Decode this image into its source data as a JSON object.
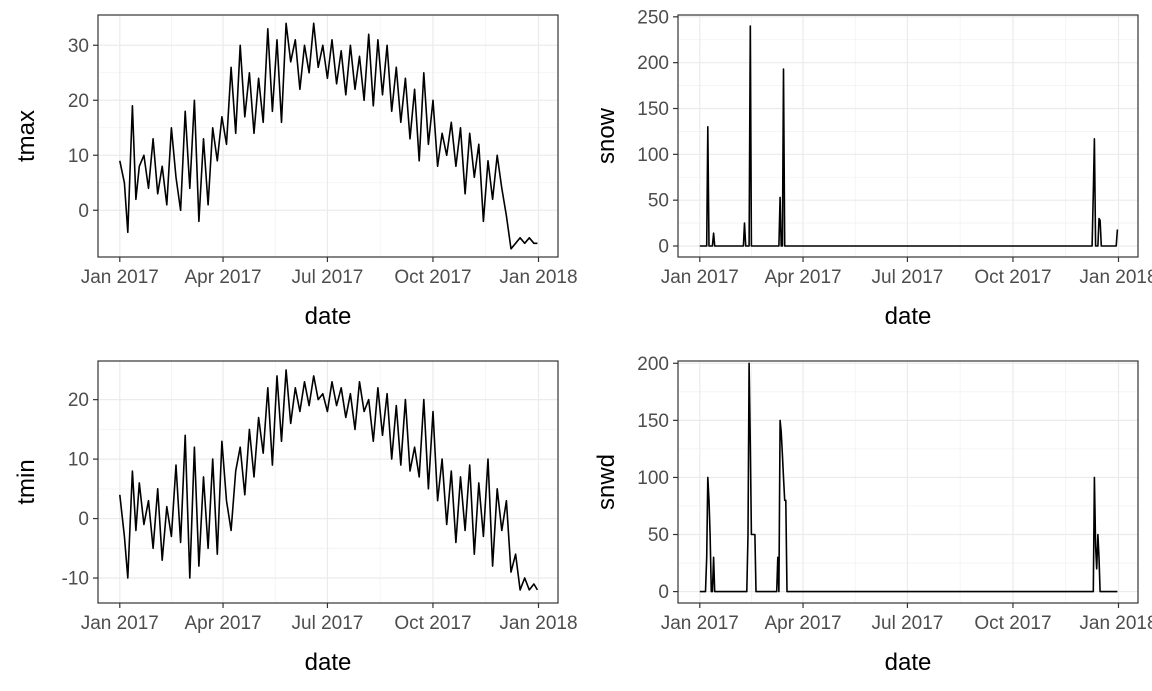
{
  "chart_data": [
    {
      "type": "line",
      "ylabel": "tmax",
      "xlabel": "date",
      "x_ticks": [
        "Jan 2017",
        "Apr 2017",
        "Jul 2017",
        "Oct 2017",
        "Jan 2018"
      ],
      "y_ticks": [
        0,
        10,
        20,
        30
      ],
      "ylim": [
        -8.5,
        35.5
      ],
      "xlim": [
        "2016-12-13",
        "2018-01-18"
      ],
      "grid": true,
      "series": [
        {
          "color": "#000000",
          "x": [
            "2017-01-01",
            "2017-01-05",
            "2017-01-08",
            "2017-01-12",
            "2017-01-15",
            "2017-01-18",
            "2017-01-22",
            "2017-01-26",
            "2017-01-30",
            "2017-02-03",
            "2017-02-07",
            "2017-02-11",
            "2017-02-15",
            "2017-02-19",
            "2017-02-23",
            "2017-02-27",
            "2017-03-03",
            "2017-03-07",
            "2017-03-11",
            "2017-03-15",
            "2017-03-19",
            "2017-03-23",
            "2017-03-27",
            "2017-03-31",
            "2017-04-04",
            "2017-04-08",
            "2017-04-12",
            "2017-04-16",
            "2017-04-20",
            "2017-04-24",
            "2017-04-28",
            "2017-05-02",
            "2017-05-06",
            "2017-05-10",
            "2017-05-14",
            "2017-05-18",
            "2017-05-22",
            "2017-05-26",
            "2017-05-30",
            "2017-06-03",
            "2017-06-07",
            "2017-06-11",
            "2017-06-15",
            "2017-06-19",
            "2017-06-23",
            "2017-06-27",
            "2017-07-01",
            "2017-07-05",
            "2017-07-09",
            "2017-07-13",
            "2017-07-17",
            "2017-07-21",
            "2017-07-25",
            "2017-07-29",
            "2017-08-02",
            "2017-08-06",
            "2017-08-10",
            "2017-08-14",
            "2017-08-18",
            "2017-08-22",
            "2017-08-26",
            "2017-08-30",
            "2017-09-03",
            "2017-09-07",
            "2017-09-11",
            "2017-09-15",
            "2017-09-19",
            "2017-09-23",
            "2017-09-27",
            "2017-10-01",
            "2017-10-05",
            "2017-10-09",
            "2017-10-13",
            "2017-10-17",
            "2017-10-21",
            "2017-10-25",
            "2017-10-29",
            "2017-11-02",
            "2017-11-06",
            "2017-11-10",
            "2017-11-14",
            "2017-11-18",
            "2017-11-22",
            "2017-11-26",
            "2017-11-30",
            "2017-12-04",
            "2017-12-08",
            "2017-12-12",
            "2017-12-16",
            "2017-12-20",
            "2017-12-24",
            "2017-12-28",
            "2017-12-31"
          ],
          "y": [
            9,
            5,
            -4,
            19,
            2,
            8,
            10,
            4,
            13,
            3,
            8,
            1,
            15,
            6,
            0,
            18,
            4,
            20,
            -2,
            13,
            1,
            15,
            9,
            17,
            12,
            26,
            14,
            30,
            17,
            25,
            14,
            24,
            16,
            33,
            18,
            31,
            16,
            34,
            27,
            31,
            22,
            30,
            25,
            34,
            26,
            30,
            24,
            31,
            23,
            29,
            21,
            30,
            22,
            28,
            20,
            32,
            19,
            31,
            21,
            30,
            18,
            26,
            16,
            24,
            13,
            22,
            9,
            25,
            12,
            20,
            8,
            14,
            10,
            16,
            8,
            15,
            3,
            14,
            6,
            12,
            -2,
            9,
            2,
            10,
            4,
            -1,
            -7,
            -6,
            -5,
            -6,
            -5,
            -6,
            -6
          ]
        }
      ]
    },
    {
      "type": "line",
      "ylabel": "snow",
      "xlabel": "date",
      "x_ticks": [
        "Jan 2017",
        "Apr 2017",
        "Jul 2017",
        "Oct 2017",
        "Jan 2018"
      ],
      "y_ticks": [
        0,
        50,
        100,
        150,
        200,
        250
      ],
      "ylim": [
        -12,
        252
      ],
      "xlim": [
        "2016-12-13",
        "2018-01-18"
      ],
      "grid": true,
      "series": [
        {
          "color": "#000000",
          "x": [
            "2017-01-01",
            "2017-01-07",
            "2017-01-08",
            "2017-01-09",
            "2017-01-10",
            "2017-01-12",
            "2017-01-13",
            "2017-01-14",
            "2017-01-15",
            "2017-02-08",
            "2017-02-09",
            "2017-02-10",
            "2017-02-13",
            "2017-02-14",
            "2017-02-15",
            "2017-02-16",
            "2017-03-11",
            "2017-03-12",
            "2017-03-13",
            "2017-03-14",
            "2017-03-15",
            "2017-03-16",
            "2017-03-17",
            "2017-12-09",
            "2017-12-10",
            "2017-12-11",
            "2017-12-12",
            "2017-12-13",
            "2017-12-14",
            "2017-12-15",
            "2017-12-16",
            "2017-12-17",
            "2017-12-18",
            "2017-12-30",
            "2017-12-31"
          ],
          "y": [
            0,
            0,
            130,
            0,
            0,
            0,
            14,
            0,
            0,
            0,
            25,
            0,
            0,
            240,
            0,
            0,
            0,
            53,
            0,
            0,
            193,
            0,
            0,
            0,
            58,
            117,
            0,
            0,
            0,
            30,
            28,
            0,
            0,
            0,
            18
          ]
        }
      ]
    },
    {
      "type": "line",
      "ylabel": "tmin",
      "xlabel": "date",
      "x_ticks": [
        "Jan 2017",
        "Apr 2017",
        "Jul 2017",
        "Oct 2017",
        "Jan 2018"
      ],
      "y_ticks": [
        -10,
        0,
        10,
        20
      ],
      "ylim": [
        -14.2,
        26.5
      ],
      "xlim": [
        "2016-12-13",
        "2018-01-18"
      ],
      "grid": true,
      "series": [
        {
          "color": "#000000",
          "x": [
            "2017-01-01",
            "2017-01-05",
            "2017-01-08",
            "2017-01-12",
            "2017-01-15",
            "2017-01-18",
            "2017-01-22",
            "2017-01-26",
            "2017-01-30",
            "2017-02-03",
            "2017-02-07",
            "2017-02-11",
            "2017-02-15",
            "2017-02-19",
            "2017-02-23",
            "2017-02-27",
            "2017-03-03",
            "2017-03-07",
            "2017-03-11",
            "2017-03-15",
            "2017-03-19",
            "2017-03-23",
            "2017-03-27",
            "2017-03-31",
            "2017-04-04",
            "2017-04-08",
            "2017-04-12",
            "2017-04-16",
            "2017-04-20",
            "2017-04-24",
            "2017-04-28",
            "2017-05-02",
            "2017-05-06",
            "2017-05-10",
            "2017-05-14",
            "2017-05-18",
            "2017-05-22",
            "2017-05-26",
            "2017-05-30",
            "2017-06-03",
            "2017-06-07",
            "2017-06-11",
            "2017-06-15",
            "2017-06-19",
            "2017-06-23",
            "2017-06-27",
            "2017-07-01",
            "2017-07-05",
            "2017-07-09",
            "2017-07-13",
            "2017-07-17",
            "2017-07-21",
            "2017-07-25",
            "2017-07-29",
            "2017-08-02",
            "2017-08-06",
            "2017-08-10",
            "2017-08-14",
            "2017-08-18",
            "2017-08-22",
            "2017-08-26",
            "2017-08-30",
            "2017-09-03",
            "2017-09-07",
            "2017-09-11",
            "2017-09-15",
            "2017-09-19",
            "2017-09-23",
            "2017-09-27",
            "2017-10-01",
            "2017-10-05",
            "2017-10-09",
            "2017-10-13",
            "2017-10-17",
            "2017-10-21",
            "2017-10-25",
            "2017-10-29",
            "2017-11-02",
            "2017-11-06",
            "2017-11-10",
            "2017-11-14",
            "2017-11-18",
            "2017-11-22",
            "2017-11-26",
            "2017-11-30",
            "2017-12-04",
            "2017-12-08",
            "2017-12-12",
            "2017-12-16",
            "2017-12-20",
            "2017-12-24",
            "2017-12-28",
            "2017-12-31"
          ],
          "y": [
            4,
            -3,
            -10,
            8,
            -2,
            6,
            -1,
            3,
            -5,
            5,
            -7,
            2,
            -3,
            9,
            -4,
            14,
            -10,
            12,
            -8,
            7,
            -5,
            10,
            -6,
            13,
            3,
            -2,
            8,
            12,
            4,
            15,
            7,
            17,
            11,
            22,
            9,
            24,
            13,
            25,
            16,
            22,
            18,
            23,
            19,
            24,
            20,
            21,
            18,
            23,
            19,
            22,
            17,
            21,
            15,
            23,
            18,
            20,
            13,
            22,
            14,
            21,
            10,
            19,
            9,
            20,
            8,
            12,
            7,
            20,
            5,
            18,
            3,
            10,
            -1,
            8,
            -4,
            7,
            -2,
            9,
            -6,
            6,
            -3,
            10,
            -8,
            5,
            -2,
            3,
            -9,
            -6,
            -12,
            -10,
            -12,
            -11,
            -12
          ]
        }
      ]
    },
    {
      "type": "line",
      "ylabel": "snwd",
      "xlabel": "date",
      "x_ticks": [
        "Jan 2017",
        "Apr 2017",
        "Jul 2017",
        "Oct 2017",
        "Jan 2018"
      ],
      "y_ticks": [
        0,
        50,
        100,
        150,
        200
      ],
      "ylim": [
        -10,
        202
      ],
      "xlim": [
        "2016-12-13",
        "2018-01-18"
      ],
      "grid": true,
      "series": [
        {
          "color": "#000000",
          "x": [
            "2017-01-01",
            "2017-01-06",
            "2017-01-07",
            "2017-01-08",
            "2017-01-09",
            "2017-01-10",
            "2017-01-11",
            "2017-01-12",
            "2017-01-13",
            "2017-01-14",
            "2017-01-15",
            "2017-02-11",
            "2017-02-12",
            "2017-02-13",
            "2017-02-14",
            "2017-02-15",
            "2017-02-16",
            "2017-02-18",
            "2017-02-19",
            "2017-03-09",
            "2017-03-10",
            "2017-03-11",
            "2017-03-12",
            "2017-03-13",
            "2017-03-14",
            "2017-03-15",
            "2017-03-16",
            "2017-03-17",
            "2017-03-18",
            "2017-03-19",
            "2017-03-20",
            "2017-03-21",
            "2017-03-22",
            "2017-03-23",
            "2017-12-09",
            "2017-12-10",
            "2017-12-11",
            "2017-12-12",
            "2017-12-13",
            "2017-12-14",
            "2017-12-15",
            "2017-12-16",
            "2017-12-17",
            "2017-12-18",
            "2017-12-30",
            "2017-12-31"
          ],
          "y": [
            0,
            0,
            30,
            100,
            80,
            50,
            0,
            0,
            30,
            0,
            0,
            0,
            50,
            200,
            130,
            50,
            50,
            50,
            0,
            0,
            30,
            0,
            150,
            140,
            120,
            100,
            80,
            80,
            0,
            0,
            0,
            0,
            0,
            0,
            0,
            0,
            100,
            40,
            20,
            50,
            30,
            0,
            0,
            0,
            0,
            0
          ]
        }
      ]
    }
  ]
}
